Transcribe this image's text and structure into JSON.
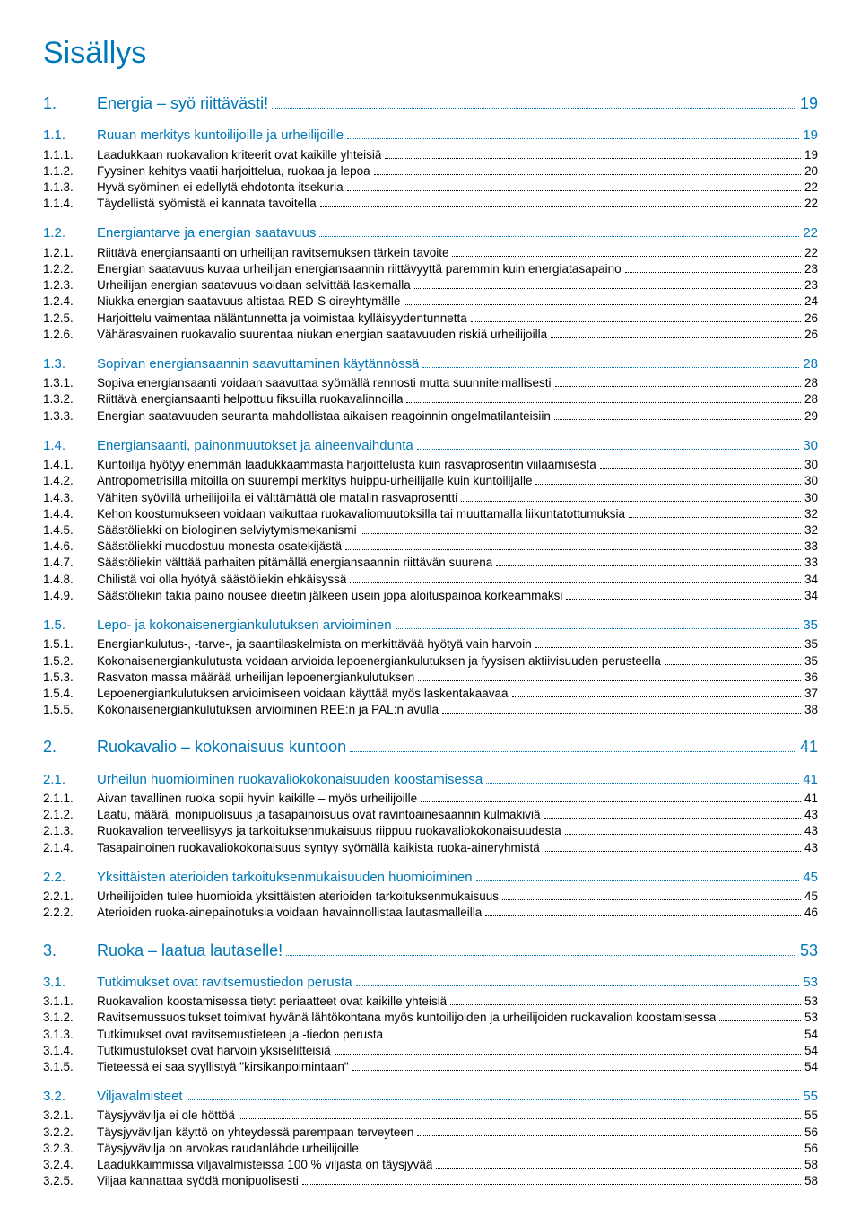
{
  "title": "Sisällys",
  "colors": {
    "accent": "#0077b8",
    "body_text": "#000000",
    "background": "#ffffff",
    "dots": "#000000"
  },
  "typography": {
    "title_fontsize_pt": 26,
    "chapter_fontsize_pt": 14,
    "section_fontsize_pt": 11,
    "entry_fontsize_pt": 10,
    "font_family": "Arial"
  },
  "entries": [
    {
      "level": "chapter",
      "num": "1.",
      "text": "Energia – syö riittävästi!",
      "page": "19"
    },
    {
      "level": "section",
      "num": "1.1.",
      "text": "Ruuan merkitys kuntoilijoille ja urheilijoille",
      "page": "19"
    },
    {
      "level": "entry",
      "num": "1.1.1.",
      "text": "Laadukkaan ruokavalion kriteerit ovat kaikille yhteisiä",
      "page": "19"
    },
    {
      "level": "entry",
      "num": "1.1.2.",
      "text": "Fyysinen kehitys vaatii harjoittelua, ruokaa ja lepoa",
      "page": "20"
    },
    {
      "level": "entry",
      "num": "1.1.3.",
      "text": "Hyvä syöminen ei edellytä ehdotonta itsekuria",
      "page": "22"
    },
    {
      "level": "entry",
      "num": "1.1.4.",
      "text": "Täydellistä syömistä ei kannata tavoitella",
      "page": "22"
    },
    {
      "level": "section",
      "num": "1.2.",
      "text": "Energiantarve ja energian saatavuus",
      "page": "22"
    },
    {
      "level": "entry",
      "num": "1.2.1.",
      "text": "Riittävä energiansaanti on urheilijan ravitsemuksen tärkein tavoite",
      "page": "22"
    },
    {
      "level": "entry",
      "num": "1.2.2.",
      "text": "Energian saatavuus kuvaa urheilijan energiansaannin riittävyyttä paremmin kuin energiatasapaino",
      "page": "23"
    },
    {
      "level": "entry",
      "num": "1.2.3.",
      "text": "Urheilijan energian saatavuus voidaan selvittää laskemalla",
      "page": "23"
    },
    {
      "level": "entry",
      "num": "1.2.4.",
      "text": "Niukka energian saatavuus altistaa RED-S oireyhtymälle",
      "page": "24"
    },
    {
      "level": "entry",
      "num": "1.2.5.",
      "text": "Harjoittelu vaimentaa näläntunnetta ja voimistaa kylläisyydentunnetta",
      "page": "26"
    },
    {
      "level": "entry",
      "num": "1.2.6.",
      "text": "Vähärasvainen ruokavalio suurentaa niukan energian saatavuuden riskiä urheilijoilla",
      "page": "26"
    },
    {
      "level": "section",
      "num": "1.3.",
      "text": "Sopivan energiansaannin saavuttaminen käytännössä",
      "page": "28"
    },
    {
      "level": "entry",
      "num": "1.3.1.",
      "text": "Sopiva energiansaanti voidaan saavuttaa syömällä rennosti mutta suunnitelmallisesti",
      "page": "28"
    },
    {
      "level": "entry",
      "num": "1.3.2.",
      "text": "Riittävä energiansaanti helpottuu fiksuilla ruokavalinnoilla",
      "page": "28"
    },
    {
      "level": "entry",
      "num": "1.3.3.",
      "text": "Energian saatavuuden seuranta mahdollistaa aikaisen reagoinnin ongelmatilanteisiin",
      "page": "29"
    },
    {
      "level": "section",
      "num": "1.4.",
      "text": "Energiansaanti, painonmuutokset ja aineenvaihdunta",
      "page": "30"
    },
    {
      "level": "entry",
      "num": "1.4.1.",
      "text": "Kuntoilija hyötyy enemmän laadukkaammasta harjoittelusta kuin rasvaprosentin viilaamisesta",
      "page": "30"
    },
    {
      "level": "entry",
      "num": "1.4.2.",
      "text": "Antropometrisilla mitoilla on suurempi merkitys huippu-urheilijalle kuin kuntoilijalle",
      "page": "30"
    },
    {
      "level": "entry",
      "num": "1.4.3.",
      "text": "Vähiten syövillä urheilijoilla ei välttämättä ole matalin rasvaprosentti",
      "page": "30"
    },
    {
      "level": "entry",
      "num": "1.4.4.",
      "text": "Kehon koostumukseen voidaan vaikuttaa ruokavaliomuutoksilla tai muuttamalla liikuntatottumuksia",
      "page": "32"
    },
    {
      "level": "entry",
      "num": "1.4.5.",
      "text": "Säästöliekki on biologinen selviytymismekanismi",
      "page": "32"
    },
    {
      "level": "entry",
      "num": "1.4.6.",
      "text": "Säästöliekki muodostuu monesta osatekijästä",
      "page": "33"
    },
    {
      "level": "entry",
      "num": "1.4.7.",
      "text": "Säästöliekin välttää parhaiten pitämällä energiansaannin riittävän suurena",
      "page": "33"
    },
    {
      "level": "entry",
      "num": "1.4.8.",
      "text": "Chilistä voi olla hyötyä säästöliekin ehkäisyssä",
      "page": "34"
    },
    {
      "level": "entry",
      "num": "1.4.9.",
      "text": "Säästöliekin takia paino nousee dieetin jälkeen usein jopa aloituspainoa korkeammaksi",
      "page": "34"
    },
    {
      "level": "section",
      "num": "1.5.",
      "text": "Lepo- ja kokonaisenergiankulutuksen arvioiminen",
      "page": "35"
    },
    {
      "level": "entry",
      "num": "1.5.1.",
      "text": "Energiankulutus-, -tarve-, ja saantilaskelmista on merkittävää hyötyä vain harvoin",
      "page": "35"
    },
    {
      "level": "entry",
      "num": "1.5.2.",
      "text": "Kokonaisenergiankulutusta voidaan arvioida lepoenergiankulutuksen ja fyysisen aktiivisuuden perusteella",
      "page": "35"
    },
    {
      "level": "entry",
      "num": "1.5.3.",
      "text": "Rasvaton massa määrää urheilijan lepoenergiankulutuksen",
      "page": "36"
    },
    {
      "level": "entry",
      "num": "1.5.4.",
      "text": "Lepoenergiankulutuksen arvioimiseen voidaan käyttää myös laskentakaavaa",
      "page": "37"
    },
    {
      "level": "entry",
      "num": "1.5.5.",
      "text": "Kokonaisenergiankulutuksen arvioiminen REE:n ja PAL:n avulla",
      "page": "38"
    },
    {
      "level": "chapter",
      "num": "2.",
      "text": "Ruokavalio – kokonaisuus kuntoon",
      "page": "41"
    },
    {
      "level": "section",
      "num": "2.1.",
      "text": "Urheilun huomioiminen ruokavaliokokonaisuuden koostamisessa",
      "page": "41"
    },
    {
      "level": "entry",
      "num": "2.1.1.",
      "text": "Aivan tavallinen ruoka sopii hyvin kaikille – myös urheilijoille",
      "page": "41"
    },
    {
      "level": "entry",
      "num": "2.1.2.",
      "text": "Laatu, määrä, monipuolisuus ja tasapainoisuus ovat ravintoainesaannin kulmakiviä",
      "page": "43"
    },
    {
      "level": "entry",
      "num": "2.1.3.",
      "text": "Ruokavalion terveellisyys ja tarkoituksenmukaisuus riippuu ruokavaliokokonaisuudesta",
      "page": "43"
    },
    {
      "level": "entry",
      "num": "2.1.4.",
      "text": "Tasapainoinen ruokavaliokokonaisuus syntyy syömällä kaikista ruoka-aineryhmistä",
      "page": "43"
    },
    {
      "level": "section",
      "num": "2.2.",
      "text": "Yksittäisten aterioiden tarkoituksenmukaisuuden huomioiminen",
      "page": "45"
    },
    {
      "level": "entry",
      "num": "2.2.1.",
      "text": "Urheilijoiden tulee huomioida yksittäisten aterioiden tarkoituksenmukaisuus",
      "page": "45"
    },
    {
      "level": "entry",
      "num": "2.2.2.",
      "text": "Aterioiden ruoka-ainepainotuksia voidaan havainnollistaa lautasmalleilla",
      "page": "46"
    },
    {
      "level": "chapter",
      "num": "3.",
      "text": "Ruoka – laatua lautaselle!",
      "page": "53"
    },
    {
      "level": "section",
      "num": "3.1.",
      "text": "Tutkimukset ovat ravitsemustiedon perusta",
      "page": "53"
    },
    {
      "level": "entry",
      "num": "3.1.1.",
      "text": "Ruokavalion koostamisessa tietyt periaatteet ovat kaikille yhteisiä",
      "page": "53"
    },
    {
      "level": "entry",
      "num": "3.1.2.",
      "text": "Ravitsemussuositukset toimivat hyvänä lähtökohtana myös kuntoilijoiden ja urheilijoiden ruokavalion koostamisessa",
      "page": "53"
    },
    {
      "level": "entry",
      "num": "3.1.3.",
      "text": "Tutkimukset ovat ravitsemustieteen ja -tiedon perusta",
      "page": "54"
    },
    {
      "level": "entry",
      "num": "3.1.4.",
      "text": "Tutkimustulokset ovat harvoin yksiselitteisiä",
      "page": "54"
    },
    {
      "level": "entry",
      "num": "3.1.5.",
      "text": "Tieteessä ei saa syyllistyä \"kirsikanpoimintaan\"",
      "page": "54"
    },
    {
      "level": "section",
      "num": "3.2.",
      "text": "Viljavalmisteet",
      "page": "55"
    },
    {
      "level": "entry",
      "num": "3.2.1.",
      "text": "Täysjyvävilja ei ole höttöä",
      "page": "55"
    },
    {
      "level": "entry",
      "num": "3.2.2.",
      "text": "Täysjyväviljan käyttö on yhteydessä parempaan terveyteen",
      "page": "56"
    },
    {
      "level": "entry",
      "num": "3.2.3.",
      "text": "Täysjyvävilja on arvokas raudanlähde urheilijoille",
      "page": "56"
    },
    {
      "level": "entry",
      "num": "3.2.4.",
      "text": "Laadukkaimmissa viljavalmisteissa 100 % viljasta on täysjyvää",
      "page": "58"
    },
    {
      "level": "entry",
      "num": "3.2.5.",
      "text": "Viljaa kannattaa syödä monipuolisesti",
      "page": "58"
    }
  ]
}
